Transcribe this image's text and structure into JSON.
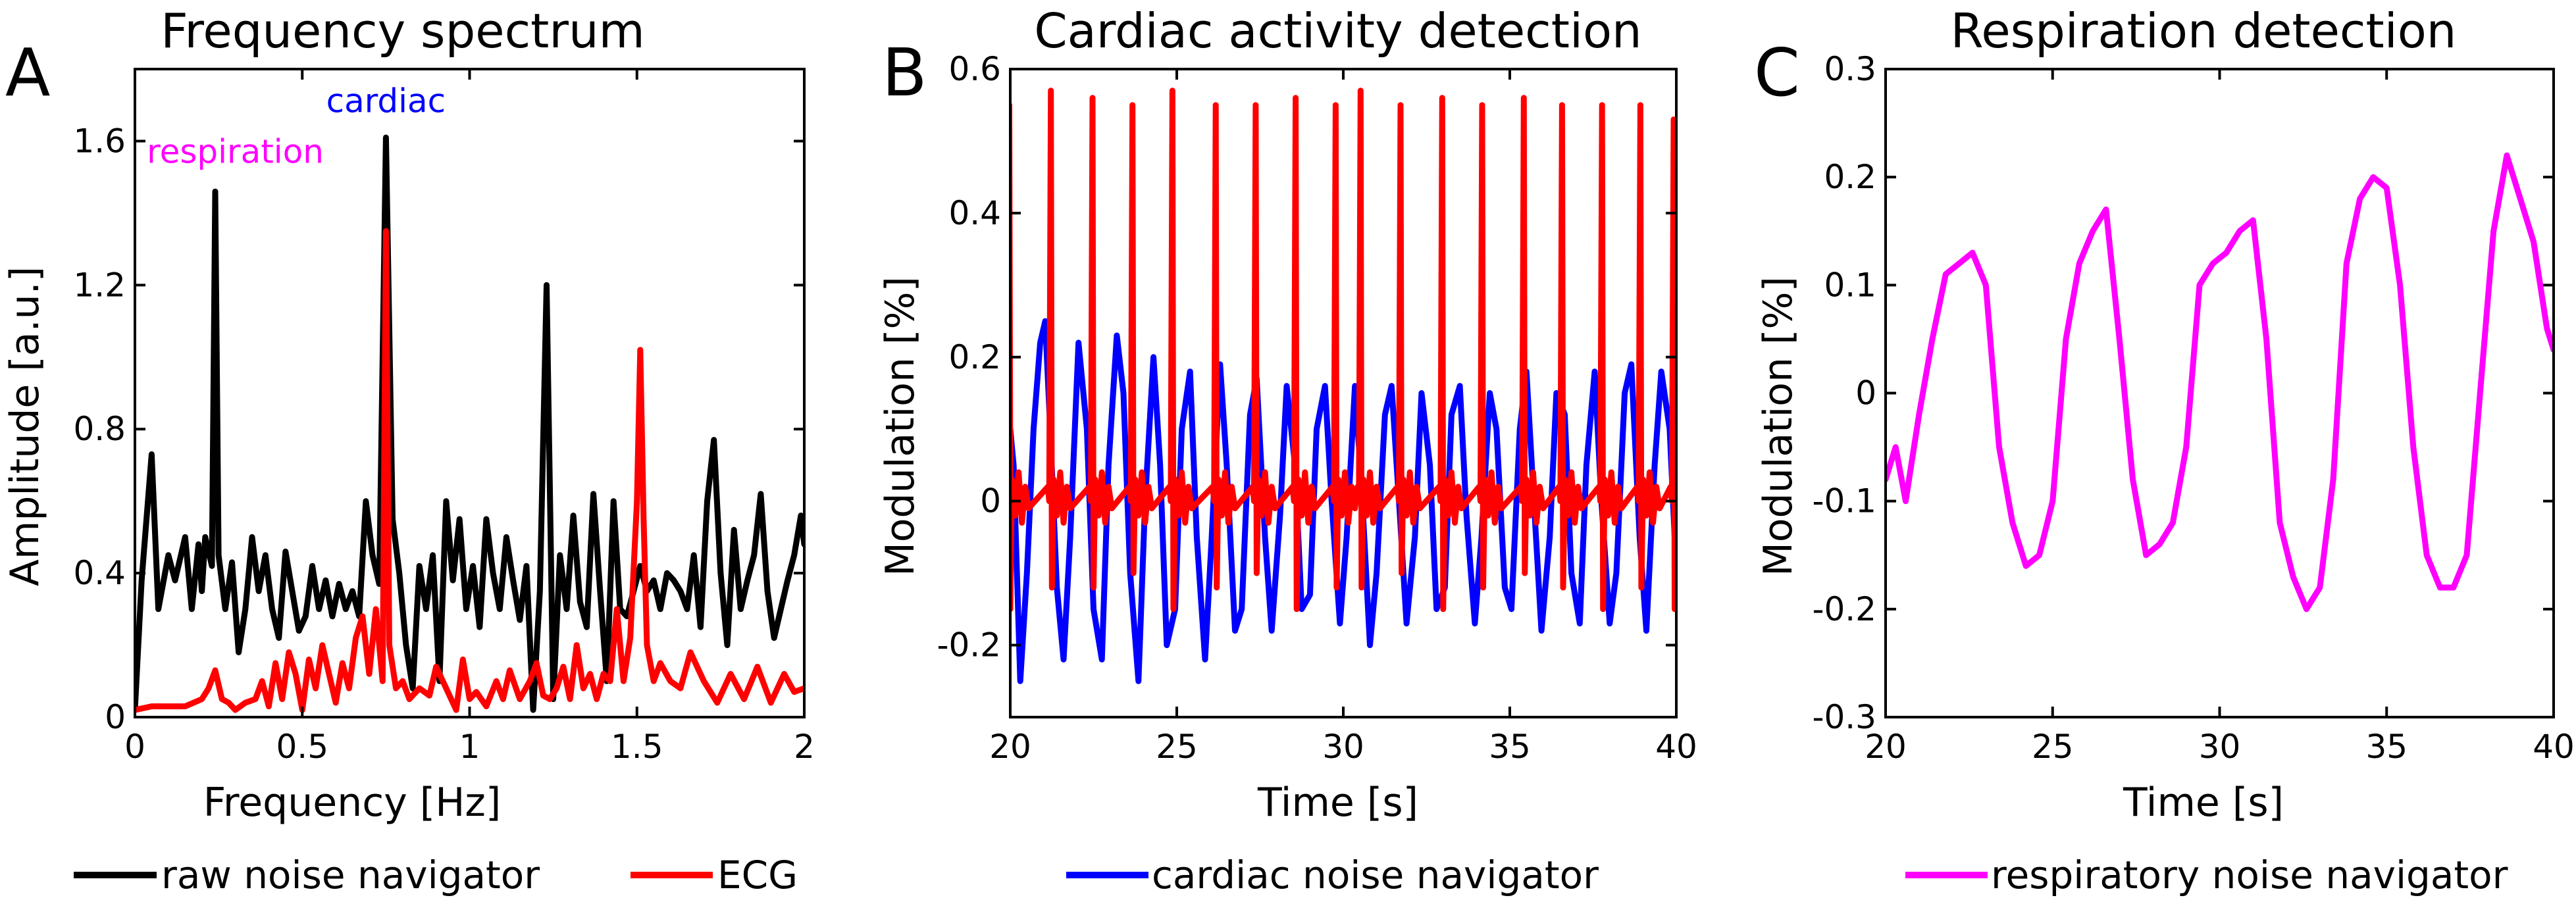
{
  "figure": {
    "panels": [
      {
        "letter": "A",
        "title": "Frequency spectrum",
        "xlabel": "Frequency [Hz]",
        "ylabel": "Amplitude [a.u.]"
      },
      {
        "letter": "B",
        "title": "Cardiac activity detection",
        "xlabel": "Time [s]",
        "ylabel": "Modulation [%]"
      },
      {
        "letter": "C",
        "title": "Respiration detection",
        "xlabel": "Time [s]",
        "ylabel": "Modulation [%]"
      }
    ]
  },
  "chart_data": [
    {
      "type": "line",
      "title": "Frequency spectrum",
      "xlabel": "Frequency [Hz]",
      "ylabel": "Amplitude [a.u.]",
      "xlim": [
        0,
        2
      ],
      "ylim": [
        0,
        1.8
      ],
      "xticks": [
        0,
        0.5,
        1,
        1.5,
        2
      ],
      "xtick_labels": [
        "0",
        "0.5",
        "1",
        "1.5",
        "2"
      ],
      "yticks": [
        0,
        0.4,
        0.8,
        1.2,
        1.6
      ],
      "ytick_labels": [
        "0",
        "0.4",
        "0.8",
        "1.2",
        "1.6"
      ],
      "annotations": [
        {
          "text": "cardiac",
          "x": 0.75,
          "y": 1.68,
          "color": "#0000ff"
        },
        {
          "text": "respiration",
          "x": 0.3,
          "y": 1.54,
          "color": "#ff00ff"
        }
      ],
      "series": [
        {
          "name": "raw noise navigator",
          "color": "#000000",
          "x": [
            0,
            0.02,
            0.05,
            0.07,
            0.1,
            0.12,
            0.15,
            0.17,
            0.19,
            0.2,
            0.21,
            0.23,
            0.24,
            0.25,
            0.27,
            0.29,
            0.31,
            0.33,
            0.35,
            0.37,
            0.39,
            0.41,
            0.43,
            0.45,
            0.47,
            0.49,
            0.51,
            0.53,
            0.55,
            0.57,
            0.59,
            0.61,
            0.63,
            0.65,
            0.67,
            0.69,
            0.71,
            0.73,
            0.75,
            0.77,
            0.79,
            0.81,
            0.83,
            0.85,
            0.87,
            0.89,
            0.91,
            0.93,
            0.95,
            0.97,
            0.99,
            1.01,
            1.03,
            1.05,
            1.07,
            1.09,
            1.11,
            1.13,
            1.15,
            1.17,
            1.19,
            1.21,
            1.23,
            1.25,
            1.27,
            1.29,
            1.31,
            1.33,
            1.35,
            1.37,
            1.39,
            1.41,
            1.43,
            1.45,
            1.47,
            1.49,
            1.51,
            1.53,
            1.55,
            1.57,
            1.59,
            1.61,
            1.63,
            1.65,
            1.67,
            1.69,
            1.71,
            1.73,
            1.75,
            1.77,
            1.79,
            1.81,
            1.83,
            1.85,
            1.87,
            1.89,
            1.91,
            1.93,
            1.95,
            1.97,
            1.99,
            2.0
          ],
          "y": [
            0.02,
            0.38,
            0.73,
            0.3,
            0.45,
            0.38,
            0.5,
            0.3,
            0.48,
            0.35,
            0.5,
            0.42,
            1.46,
            0.45,
            0.3,
            0.43,
            0.18,
            0.3,
            0.5,
            0.35,
            0.45,
            0.3,
            0.22,
            0.46,
            0.35,
            0.24,
            0.28,
            0.42,
            0.3,
            0.38,
            0.28,
            0.37,
            0.3,
            0.35,
            0.28,
            0.6,
            0.45,
            0.37,
            1.61,
            0.55,
            0.4,
            0.2,
            0.08,
            0.42,
            0.3,
            0.45,
            0.1,
            0.6,
            0.38,
            0.55,
            0.3,
            0.42,
            0.25,
            0.55,
            0.4,
            0.3,
            0.5,
            0.38,
            0.27,
            0.42,
            0.02,
            0.35,
            1.2,
            0.05,
            0.45,
            0.3,
            0.56,
            0.32,
            0.25,
            0.62,
            0.35,
            0.1,
            0.6,
            0.3,
            0.28,
            0.35,
            0.42,
            0.35,
            0.38,
            0.3,
            0.4,
            0.38,
            0.35,
            0.3,
            0.45,
            0.25,
            0.6,
            0.77,
            0.4,
            0.2,
            0.52,
            0.3,
            0.38,
            0.45,
            0.62,
            0.35,
            0.22,
            0.3,
            0.38,
            0.45,
            0.56,
            0.48
          ]
        },
        {
          "name": "ECG",
          "color": "#ff0000",
          "x": [
            0,
            0.05,
            0.1,
            0.15,
            0.2,
            0.22,
            0.24,
            0.26,
            0.28,
            0.3,
            0.33,
            0.36,
            0.38,
            0.4,
            0.42,
            0.44,
            0.46,
            0.48,
            0.5,
            0.52,
            0.54,
            0.56,
            0.58,
            0.6,
            0.62,
            0.64,
            0.66,
            0.68,
            0.7,
            0.72,
            0.74,
            0.75,
            0.76,
            0.78,
            0.8,
            0.82,
            0.85,
            0.88,
            0.9,
            0.93,
            0.96,
            0.98,
            1.0,
            1.02,
            1.05,
            1.08,
            1.1,
            1.12,
            1.15,
            1.18,
            1.2,
            1.22,
            1.24,
            1.26,
            1.28,
            1.3,
            1.32,
            1.34,
            1.36,
            1.38,
            1.4,
            1.42,
            1.44,
            1.46,
            1.48,
            1.5,
            1.51,
            1.52,
            1.53,
            1.55,
            1.57,
            1.6,
            1.63,
            1.66,
            1.7,
            1.74,
            1.78,
            1.82,
            1.86,
            1.9,
            1.94,
            1.97,
            2.0
          ],
          "y": [
            0.02,
            0.03,
            0.03,
            0.03,
            0.05,
            0.08,
            0.13,
            0.05,
            0.04,
            0.02,
            0.04,
            0.05,
            0.1,
            0.03,
            0.15,
            0.05,
            0.18,
            0.12,
            0.02,
            0.16,
            0.08,
            0.2,
            0.12,
            0.04,
            0.15,
            0.08,
            0.22,
            0.28,
            0.12,
            0.3,
            0.1,
            1.35,
            0.2,
            0.08,
            0.1,
            0.05,
            0.08,
            0.06,
            0.14,
            0.08,
            0.02,
            0.16,
            0.05,
            0.07,
            0.03,
            0.1,
            0.05,
            0.13,
            0.05,
            0.1,
            0.15,
            0.06,
            0.05,
            0.08,
            0.14,
            0.05,
            0.2,
            0.08,
            0.12,
            0.05,
            0.12,
            0.1,
            0.3,
            0.1,
            0.22,
            0.6,
            1.02,
            0.55,
            0.2,
            0.1,
            0.15,
            0.1,
            0.08,
            0.18,
            0.1,
            0.04,
            0.12,
            0.05,
            0.14,
            0.04,
            0.12,
            0.07,
            0.08
          ]
        }
      ]
    },
    {
      "type": "line",
      "title": "Cardiac activity detection",
      "xlabel": "Time [s]",
      "ylabel": "Modulation [%]",
      "xlim": [
        20,
        40
      ],
      "ylim": [
        -0.3,
        0.6
      ],
      "xticks": [
        20,
        25,
        30,
        35,
        40
      ],
      "xtick_labels": [
        "20",
        "25",
        "30",
        "35",
        "40"
      ],
      "yticks": [
        -0.2,
        0,
        0.2,
        0.4,
        0.6
      ],
      "ytick_labels": [
        "-0.2",
        "0",
        "0.2",
        "0.4",
        "0.6"
      ],
      "series": [
        {
          "name": "cardiac noise navigator",
          "color": "#0000ff",
          "x": [
            20.0,
            20.1,
            20.3,
            20.5,
            20.7,
            20.9,
            21.05,
            21.2,
            21.4,
            21.6,
            21.8,
            22.05,
            22.3,
            22.5,
            22.75,
            22.95,
            23.2,
            23.4,
            23.6,
            23.85,
            24.05,
            24.3,
            24.5,
            24.7,
            24.95,
            25.15,
            25.4,
            25.6,
            25.85,
            26.05,
            26.3,
            26.5,
            26.75,
            26.95,
            27.2,
            27.4,
            27.65,
            27.85,
            28.1,
            28.3,
            28.55,
            28.75,
            29.0,
            29.2,
            29.45,
            29.65,
            29.9,
            30.1,
            30.35,
            30.55,
            30.8,
            31.0,
            31.25,
            31.45,
            31.7,
            31.9,
            32.15,
            32.35,
            32.6,
            32.8,
            33.05,
            33.25,
            33.5,
            33.7,
            33.95,
            34.15,
            34.4,
            34.6,
            34.85,
            35.05,
            35.3,
            35.5,
            35.75,
            35.95,
            36.2,
            36.4,
            36.65,
            36.85,
            37.1,
            37.3,
            37.55,
            37.75,
            38.0,
            38.2,
            38.45,
            38.65,
            38.9,
            39.1,
            39.35,
            39.55,
            39.8,
            40.0
          ],
          "y": [
            0.1,
            0.05,
            -0.25,
            -0.1,
            0.1,
            0.22,
            0.25,
            0.1,
            -0.12,
            -0.22,
            -0.05,
            0.22,
            0.1,
            -0.15,
            -0.22,
            0.05,
            0.23,
            0.15,
            -0.1,
            -0.25,
            0.0,
            0.2,
            0.05,
            -0.2,
            -0.15,
            0.1,
            0.18,
            -0.05,
            -0.22,
            -0.05,
            0.19,
            0.05,
            -0.18,
            -0.15,
            0.12,
            0.17,
            -0.05,
            -0.18,
            -0.02,
            0.16,
            0.05,
            -0.15,
            -0.13,
            0.1,
            0.16,
            0.0,
            -0.17,
            -0.05,
            0.16,
            0.02,
            -0.2,
            -0.1,
            0.12,
            0.16,
            -0.02,
            -0.17,
            -0.05,
            0.15,
            0.05,
            -0.15,
            -0.12,
            0.12,
            0.16,
            -0.02,
            -0.17,
            -0.05,
            0.15,
            0.1,
            -0.12,
            -0.15,
            0.1,
            0.18,
            -0.02,
            -0.18,
            -0.05,
            0.15,
            0.12,
            -0.1,
            -0.17,
            0.05,
            0.18,
            0.0,
            -0.17,
            -0.1,
            0.15,
            0.19,
            -0.05,
            -0.18,
            0.05,
            0.18,
            0.1,
            -0.1
          ]
        },
        {
          "name": "ECG",
          "color": "#ff0000",
          "beat_times": [
            20.0,
            21.25,
            22.5,
            23.7,
            24.9,
            26.2,
            27.4,
            28.6,
            29.8,
            30.55,
            31.75,
            33.0,
            34.2,
            35.45,
            36.6,
            37.8,
            38.95,
            39.95
          ],
          "r_peaks": [
            0.55,
            0.57,
            0.56,
            0.55,
            0.57,
            0.55,
            0.55,
            0.56,
            0.55,
            0.57,
            0.55,
            0.56,
            0.55,
            0.56,
            0.55,
            0.55,
            0.55,
            0.53
          ],
          "s_troughs": [
            -0.15,
            -0.12,
            -0.12,
            -0.1,
            -0.15,
            -0.12,
            -0.1,
            -0.15,
            -0.12,
            -0.12,
            -0.1,
            -0.15,
            -0.12,
            -0.1,
            -0.12,
            -0.15,
            -0.12,
            -0.15
          ]
        }
      ]
    },
    {
      "type": "line",
      "title": "Respiration detection",
      "xlabel": "Time [s]",
      "ylabel": "Modulation [%]",
      "xlim": [
        20,
        40
      ],
      "ylim": [
        -0.3,
        0.3
      ],
      "xticks": [
        20,
        25,
        30,
        35,
        40
      ],
      "xtick_labels": [
        "20",
        "25",
        "30",
        "35",
        "40"
      ],
      "yticks": [
        -0.3,
        -0.2,
        -0.1,
        0,
        0.1,
        0.2,
        0.3
      ],
      "ytick_labels": [
        "-0.3",
        "-0.2",
        "-0.1",
        "0",
        "0.1",
        "0.2",
        "0.3"
      ],
      "series": [
        {
          "name": "respiratory noise navigator",
          "color": "#ff00ff",
          "x": [
            20.0,
            20.3,
            20.6,
            21.0,
            21.4,
            21.8,
            22.2,
            22.6,
            23.0,
            23.4,
            23.8,
            24.2,
            24.6,
            25.0,
            25.4,
            25.8,
            26.2,
            26.6,
            27.0,
            27.4,
            27.8,
            28.2,
            28.6,
            29.0,
            29.4,
            29.8,
            30.2,
            30.6,
            31.0,
            31.4,
            31.8,
            32.2,
            32.6,
            33.0,
            33.4,
            33.8,
            34.2,
            34.6,
            35.0,
            35.4,
            35.8,
            36.2,
            36.6,
            37.0,
            37.4,
            37.8,
            38.2,
            38.6,
            39.0,
            39.4,
            39.8,
            40.0
          ],
          "y": [
            -0.08,
            -0.05,
            -0.1,
            -0.02,
            0.05,
            0.11,
            0.12,
            0.13,
            0.1,
            -0.05,
            -0.12,
            -0.16,
            -0.15,
            -0.1,
            0.05,
            0.12,
            0.15,
            0.17,
            0.05,
            -0.08,
            -0.15,
            -0.14,
            -0.12,
            -0.05,
            0.1,
            0.12,
            0.13,
            0.15,
            0.16,
            0.05,
            -0.12,
            -0.17,
            -0.2,
            -0.18,
            -0.08,
            0.12,
            0.18,
            0.2,
            0.19,
            0.1,
            -0.05,
            -0.15,
            -0.18,
            -0.18,
            -0.15,
            0.0,
            0.15,
            0.22,
            0.18,
            0.14,
            0.06,
            0.04
          ]
        }
      ]
    }
  ],
  "legends": [
    {
      "label": "raw noise navigator",
      "color": "#000000"
    },
    {
      "label": "ECG",
      "color": "#ff0000"
    },
    {
      "label": "cardiac noise navigator",
      "color": "#0000ff"
    },
    {
      "label": "respiratory noise navigator",
      "color": "#ff00ff"
    }
  ]
}
